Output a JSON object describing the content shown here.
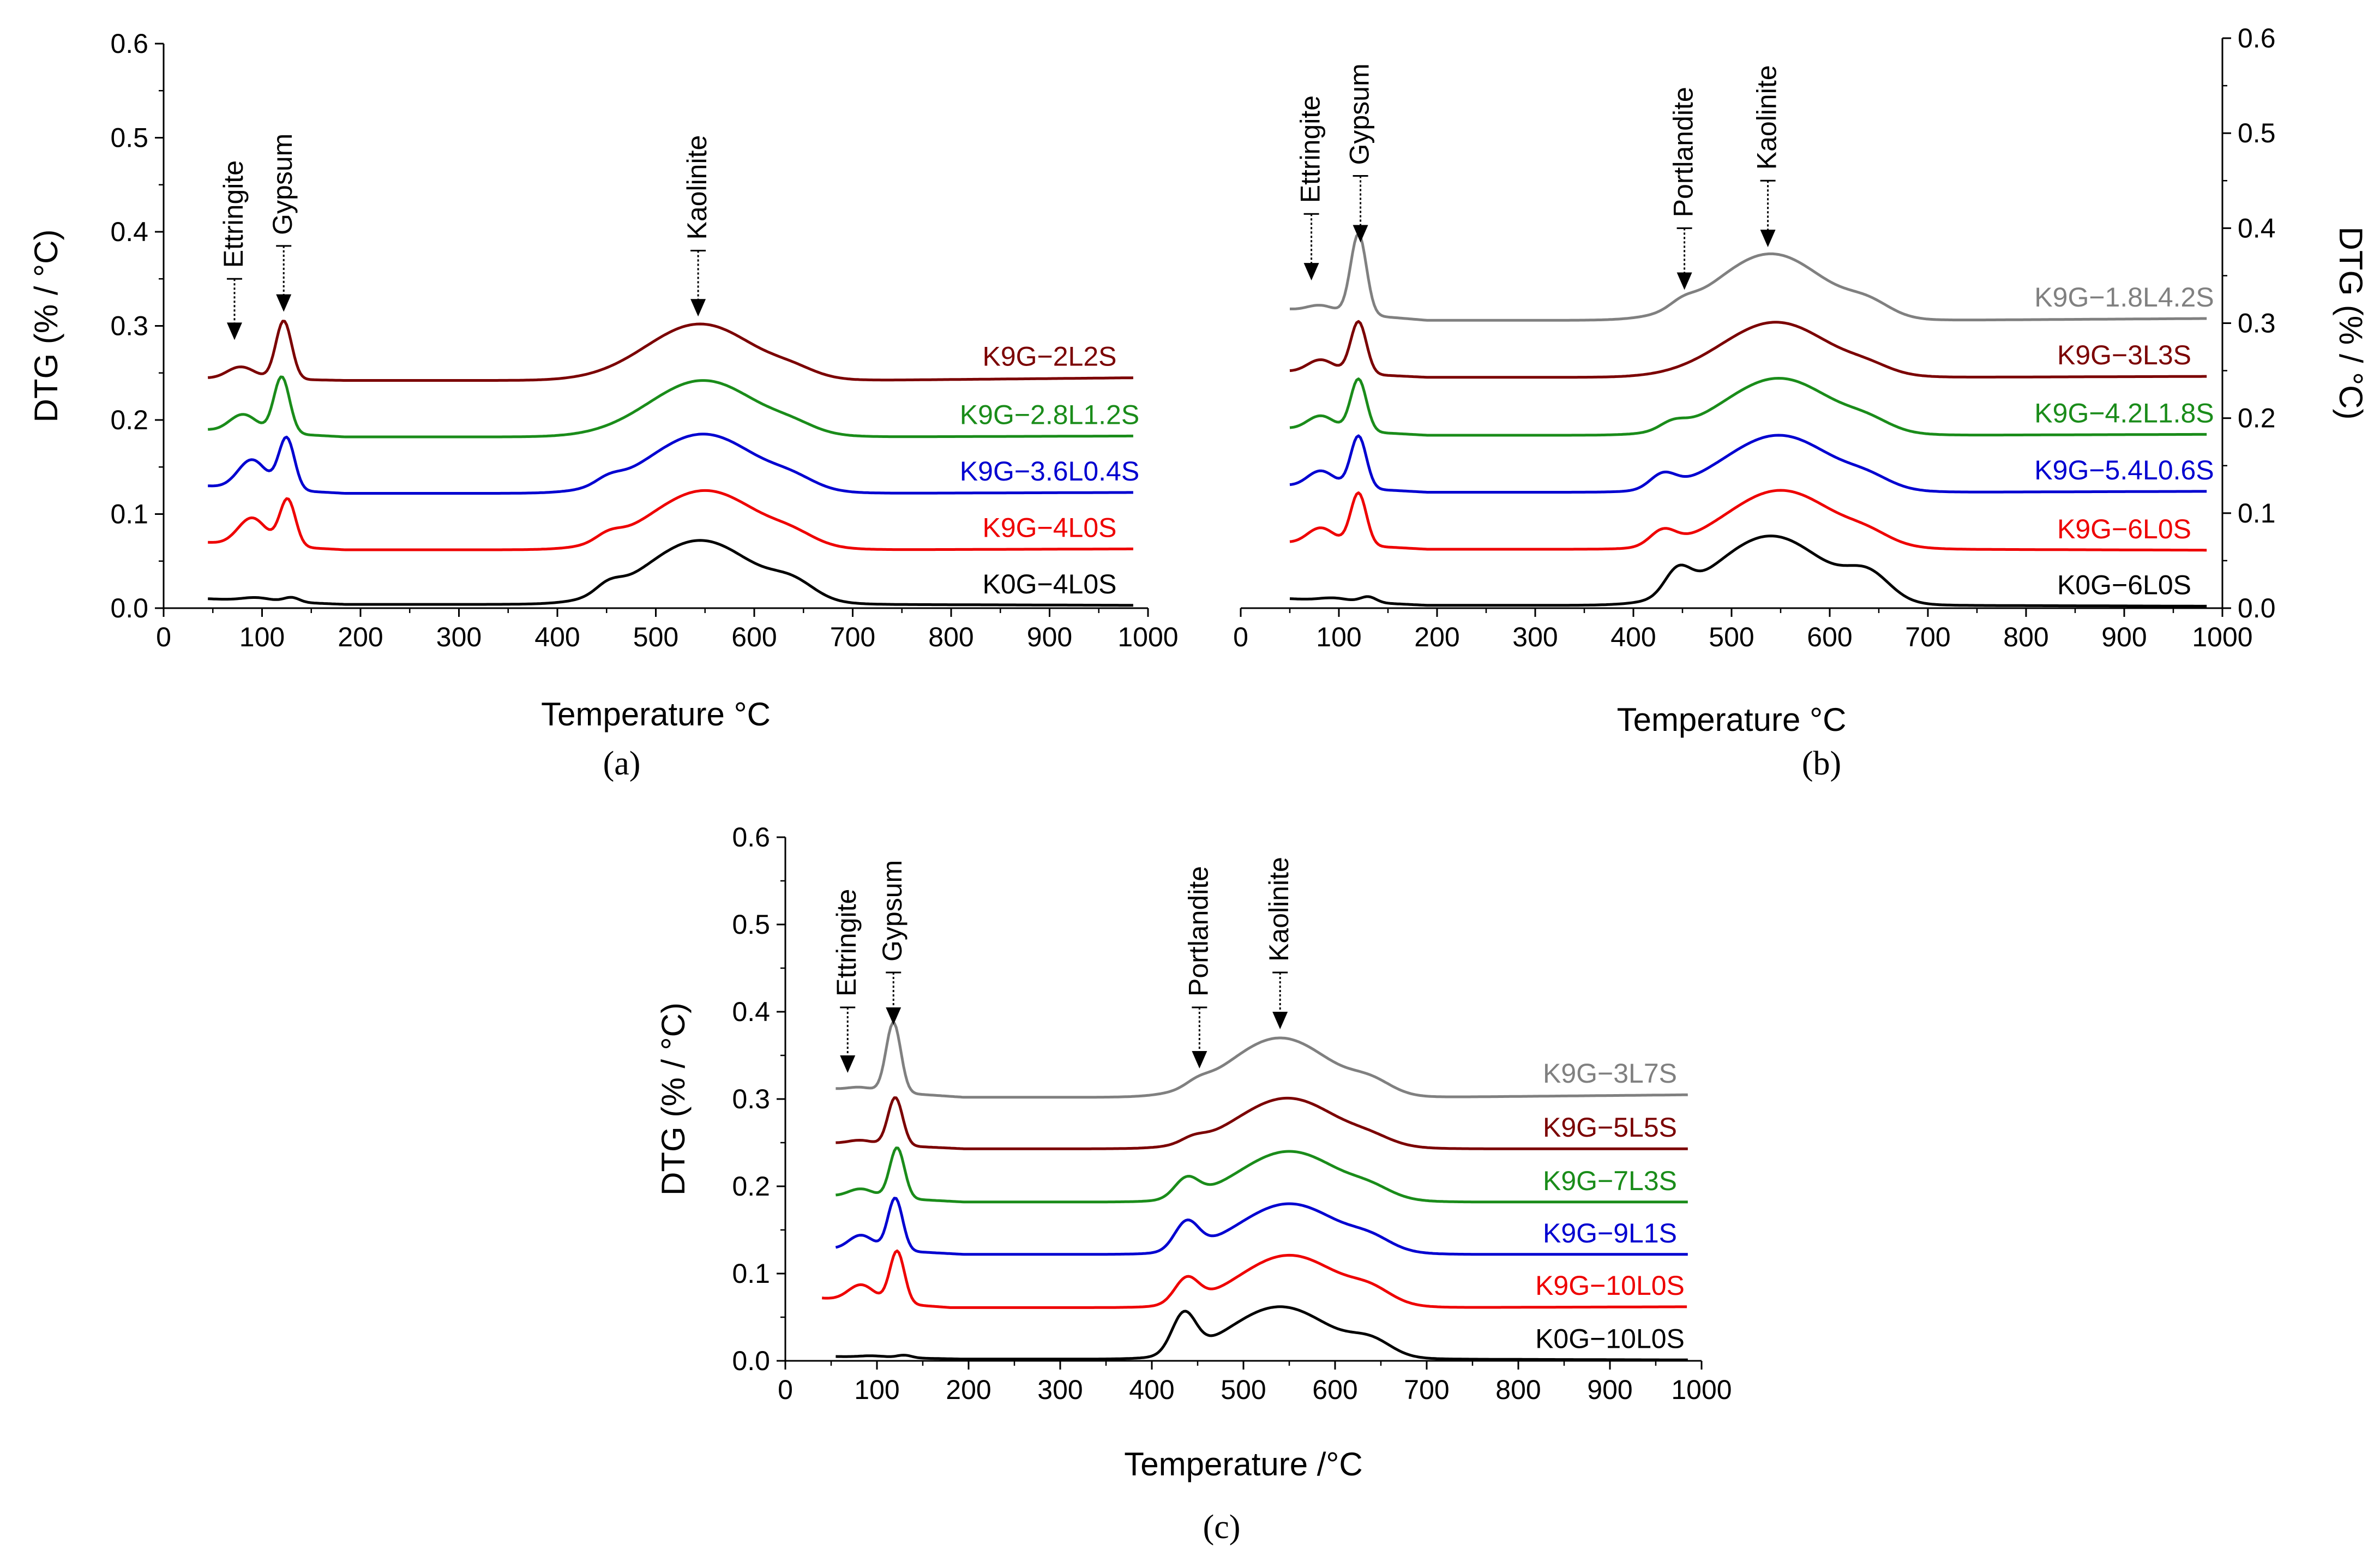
{
  "figure": {
    "caption_a": "(a)",
    "caption_b": "(b)",
    "caption_c": "(c)",
    "bold_letters": [
      "a",
      "b",
      "c"
    ]
  },
  "chart_data": [
    {
      "id": "a",
      "type": "line",
      "xlabel": "Temperature",
      "xlabel_unit": "°C",
      "ylabel": "DTG (% / °C)",
      "xlim": [
        0,
        1000
      ],
      "ylim": [
        0,
        0.6
      ],
      "xticks": [
        "0",
        "100",
        "200",
        "300",
        "400",
        "500",
        "600",
        "700",
        "800",
        "900",
        "1000"
      ],
      "yticks": [
        "0.0",
        "0.1",
        "0.2",
        "0.3",
        "0.4",
        "0.5",
        "0.6"
      ],
      "annotations": [
        {
          "label": "Ettringite",
          "x": 72,
          "y_tip": 0.285,
          "y_tail": 0.35
        },
        {
          "label": "Gypsum",
          "x": 122,
          "y_tip": 0.315,
          "y_tail": 0.385
        },
        {
          "label": "Kaolinite",
          "x": 543,
          "y_tip": 0.31,
          "y_tail": 0.38
        }
      ],
      "series": [
        {
          "name": "K9G−2L2S",
          "color": "#7b0000",
          "x_start": 45,
          "baseline": 0.245,
          "plateau": 0.242,
          "end": 0.245,
          "ett": {
            "x": 72,
            "h": 0.028
          },
          "gyp": {
            "x": 122,
            "h": 0.062
          },
          "port": null,
          "kao": {
            "x": 545,
            "h": 0.06,
            "shoulder": 0.006
          }
        },
        {
          "name": "K9G−2.8L1.2S",
          "color": "#1a8c1a",
          "x_start": 45,
          "baseline": 0.19,
          "plateau": 0.182,
          "end": 0.183,
          "ett": {
            "x": 75,
            "h": 0.038
          },
          "gyp": {
            "x": 120,
            "h": 0.06
          },
          "port": null,
          "kao": {
            "x": 548,
            "h": 0.06,
            "shoulder": 0.006
          }
        },
        {
          "name": "K9G−3.6L0.4S",
          "color": "#0000d0",
          "x_start": 45,
          "baseline": 0.13,
          "plateau": 0.122,
          "end": 0.123,
          "ett": {
            "x": 85,
            "h": 0.05
          },
          "gyp": {
            "x": 125,
            "h": 0.055
          },
          "port": {
            "x": 452,
            "h": 0.007
          },
          "kao": {
            "x": 548,
            "h": 0.063,
            "shoulder": 0.008
          }
        },
        {
          "name": "K9G−4L0S",
          "color": "#ee0000",
          "x_start": 45,
          "baseline": 0.07,
          "plateau": 0.062,
          "end": 0.063,
          "ett": {
            "x": 85,
            "h": 0.047
          },
          "gyp": {
            "x": 126,
            "h": 0.05
          },
          "port": {
            "x": 452,
            "h": 0.008
          },
          "kao": {
            "x": 550,
            "h": 0.063,
            "shoulder": 0.008
          }
        },
        {
          "name": "K0G−4L0S",
          "color": "#000000",
          "x_start": 45,
          "baseline": 0.01,
          "plateau": 0.004,
          "end": 0.003,
          "ett": {
            "x": 90,
            "h": 0.005
          },
          "gyp": {
            "x": 130,
            "h": 0.005
          },
          "port": {
            "x": 452,
            "h": 0.01
          },
          "kao": {
            "x": 545,
            "h": 0.068,
            "shoulder": 0.015
          }
        }
      ]
    },
    {
      "id": "b",
      "type": "line",
      "xlabel": "Temperature",
      "xlabel_unit": "°C",
      "ylabel": "DTG (% / °C)",
      "xlim": [
        0,
        1000
      ],
      "ylim": [
        0,
        0.6
      ],
      "xticks": [
        "0",
        "100",
        "200",
        "300",
        "400",
        "500",
        "600",
        "700",
        "800",
        "900",
        "1000"
      ],
      "yticks": [
        "0.0",
        "0.1",
        "0.2",
        "0.3",
        "0.4",
        "0.5",
        "0.6"
      ],
      "annotations": [
        {
          "label": "Ettringite",
          "x": 72,
          "y_tip": 0.345,
          "y_tail": 0.415
        },
        {
          "label": "Gypsum",
          "x": 122,
          "y_tip": 0.385,
          "y_tail": 0.455
        },
        {
          "label": "Portlandite",
          "x": 452,
          "y_tip": 0.335,
          "y_tail": 0.4
        },
        {
          "label": "Kaolinite",
          "x": 537,
          "y_tip": 0.38,
          "y_tail": 0.45
        }
      ],
      "series": [
        {
          "name": "K9G−1.8L4.2S",
          "color": "#808080",
          "x_start": 50,
          "baseline": 0.315,
          "plateau": 0.303,
          "end": 0.305,
          "ett": {
            "x": 75,
            "h": 0.016
          },
          "gyp": {
            "x": 120,
            "h": 0.085
          },
          "port": {
            "x": 450,
            "h": 0.007
          },
          "kao": {
            "x": 540,
            "h": 0.07,
            "shoulder": 0.012
          }
        },
        {
          "name": "K9G−3L3S",
          "color": "#7b0000",
          "x_start": 50,
          "baseline": 0.25,
          "plateau": 0.243,
          "end": 0.244,
          "ett": {
            "x": 75,
            "h": 0.032
          },
          "gyp": {
            "x": 120,
            "h": 0.055
          },
          "port": null,
          "kao": {
            "x": 545,
            "h": 0.058,
            "shoulder": 0.006
          }
        },
        {
          "name": "K9G−4.2L1.8S",
          "color": "#1a8c1a",
          "x_start": 50,
          "baseline": 0.19,
          "plateau": 0.182,
          "end": 0.183,
          "ett": {
            "x": 75,
            "h": 0.035
          },
          "gyp": {
            "x": 120,
            "h": 0.055
          },
          "port": {
            "x": 440,
            "h": 0.008
          },
          "kao": {
            "x": 548,
            "h": 0.06,
            "shoulder": 0.008
          }
        },
        {
          "name": "K9G−5.4L0.6S",
          "color": "#0000d0",
          "x_start": 50,
          "baseline": 0.13,
          "plateau": 0.122,
          "end": 0.123,
          "ett": {
            "x": 75,
            "h": 0.04
          },
          "gyp": {
            "x": 120,
            "h": 0.055
          },
          "port": {
            "x": 430,
            "h": 0.015
          },
          "kao": {
            "x": 548,
            "h": 0.06,
            "shoulder": 0.008
          }
        },
        {
          "name": "K9G−6L0S",
          "color": "#ee0000",
          "x_start": 50,
          "baseline": 0.07,
          "plateau": 0.062,
          "end": 0.061,
          "ett": {
            "x": 75,
            "h": 0.04
          },
          "gyp": {
            "x": 120,
            "h": 0.055
          },
          "port": {
            "x": 430,
            "h": 0.016
          },
          "kao": {
            "x": 550,
            "h": 0.062,
            "shoulder": 0.008
          }
        },
        {
          "name": "K0G−6L0S",
          "color": "#000000",
          "x_start": 50,
          "baseline": 0.01,
          "plateau": 0.003,
          "end": 0.002,
          "ett": {
            "x": 90,
            "h": 0.005
          },
          "gyp": {
            "x": 130,
            "h": 0.006
          },
          "port": {
            "x": 445,
            "h": 0.025
          },
          "kao": {
            "x": 540,
            "h": 0.073,
            "shoulder": 0.025
          }
        }
      ]
    },
    {
      "id": "c",
      "type": "line",
      "xlabel": "Temperature /°C",
      "xlabel_unit": "",
      "ylabel": "DTG (% / °C)",
      "xlim": [
        0,
        1000
      ],
      "ylim": [
        0,
        0.6
      ],
      "xticks": [
        "0",
        "100",
        "200",
        "300",
        "400",
        "500",
        "600",
        "700",
        "800",
        "900",
        "1000"
      ],
      "yticks": [
        "0.0",
        "0.1",
        "0.2",
        "0.3",
        "0.4",
        "0.5",
        "0.6"
      ],
      "annotations": [
        {
          "label": "Ettringite",
          "x": 68,
          "y_tip": 0.33,
          "y_tail": 0.405
        },
        {
          "label": "Gypsum",
          "x": 118,
          "y_tip": 0.385,
          "y_tail": 0.445
        },
        {
          "label": "Portlandite",
          "x": 452,
          "y_tip": 0.335,
          "y_tail": 0.405
        },
        {
          "label": "Kaolinite",
          "x": 540,
          "y_tip": 0.38,
          "y_tail": 0.445
        }
      ],
      "series": [
        {
          "name": "K9G−3L7S",
          "color": "#808080",
          "x_start": 55,
          "baseline": 0.312,
          "plateau": 0.302,
          "end": 0.305,
          "ett": {
            "x": 75,
            "h": 0.01
          },
          "gyp": {
            "x": 118,
            "h": 0.08
          },
          "port": {
            "x": 450,
            "h": 0.006
          },
          "kao": {
            "x": 540,
            "h": 0.068,
            "shoulder": 0.012
          }
        },
        {
          "name": "K9G−5L5S",
          "color": "#7b0000",
          "x_start": 55,
          "baseline": 0.25,
          "plateau": 0.243,
          "end": 0.243,
          "ett": {
            "x": 75,
            "h": 0.012
          },
          "gyp": {
            "x": 120,
            "h": 0.055
          },
          "port": {
            "x": 445,
            "h": 0.006
          },
          "kao": {
            "x": 548,
            "h": 0.058,
            "shoulder": 0.006
          }
        },
        {
          "name": "K9G−7L3S",
          "color": "#1a8c1a",
          "x_start": 55,
          "baseline": 0.19,
          "plateau": 0.182,
          "end": 0.182,
          "ett": {
            "x": 75,
            "h": 0.025
          },
          "gyp": {
            "x": 122,
            "h": 0.058
          },
          "port": {
            "x": 438,
            "h": 0.022
          },
          "kao": {
            "x": 550,
            "h": 0.058,
            "shoulder": 0.008
          }
        },
        {
          "name": "K9G−9L1S",
          "color": "#0000d0",
          "x_start": 55,
          "baseline": 0.13,
          "plateau": 0.122,
          "end": 0.122,
          "ett": {
            "x": 75,
            "h": 0.045
          },
          "gyp": {
            "x": 120,
            "h": 0.06
          },
          "port": {
            "x": 438,
            "h": 0.032
          },
          "kao": {
            "x": 550,
            "h": 0.058,
            "shoulder": 0.01
          }
        },
        {
          "name": "K9G−10L0S",
          "color": "#ee0000",
          "x_start": 40,
          "baseline": 0.072,
          "plateau": 0.061,
          "end": 0.062,
          "ett": {
            "x": 78,
            "h": 0.032
          },
          "gyp": {
            "x": 122,
            "h": 0.06
          },
          "port": {
            "x": 438,
            "h": 0.028
          },
          "kao": {
            "x": 550,
            "h": 0.06,
            "shoulder": 0.012
          }
        },
        {
          "name": "K0G−10L0S",
          "color": "#000000",
          "x_start": 55,
          "baseline": 0.005,
          "plateau": 0.002,
          "end": 0.001,
          "ett": {
            "x": 90,
            "h": 0.003
          },
          "gyp": {
            "x": 130,
            "h": 0.003
          },
          "port": {
            "x": 435,
            "h": 0.045
          },
          "kao": {
            "x": 540,
            "h": 0.06,
            "shoulder": 0.015
          }
        }
      ]
    }
  ]
}
